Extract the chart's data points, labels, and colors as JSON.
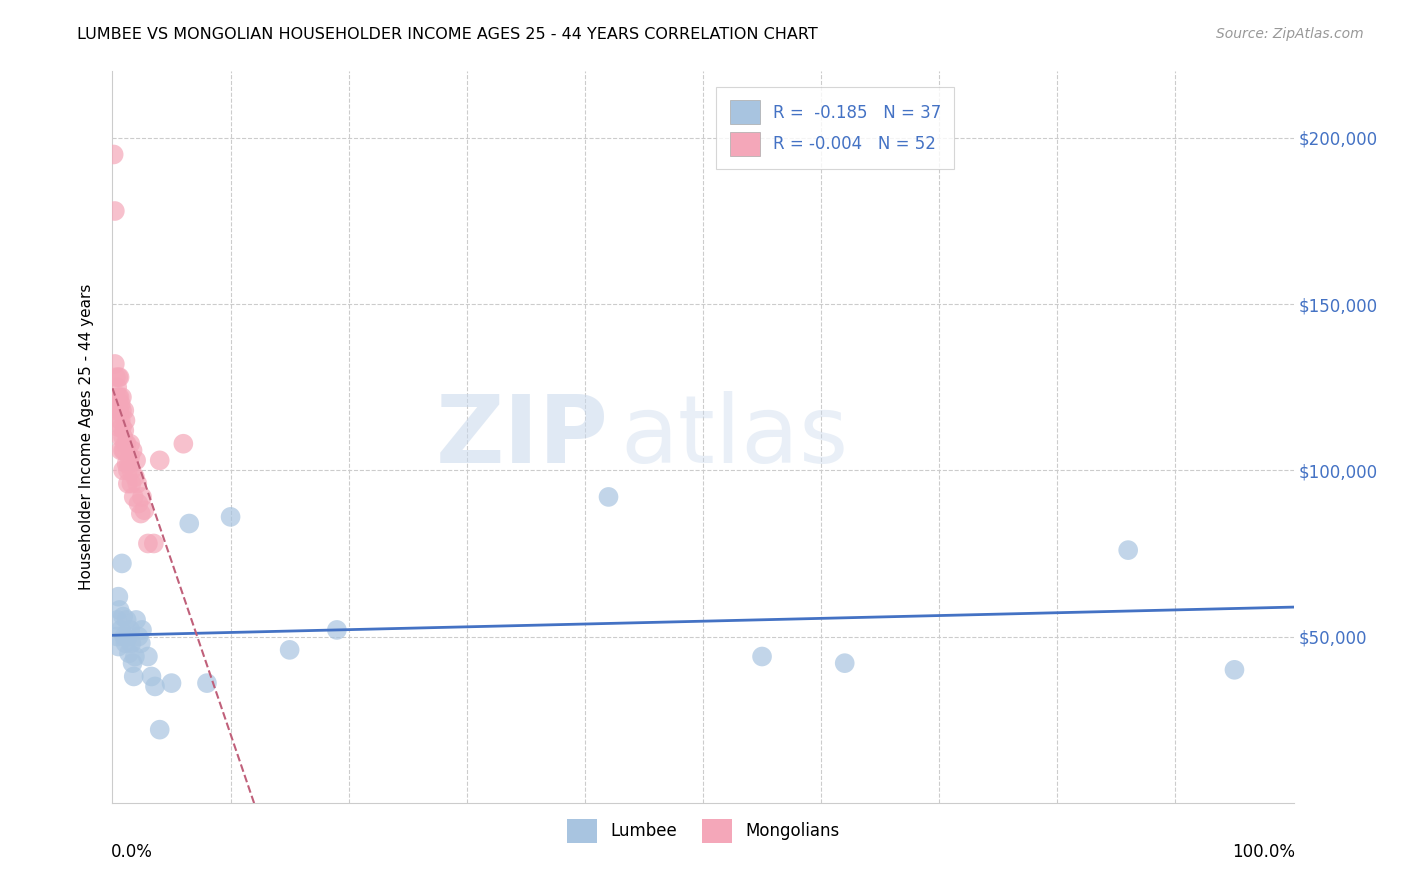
{
  "title": "LUMBEE VS MONGOLIAN HOUSEHOLDER INCOME AGES 25 - 44 YEARS CORRELATION CHART",
  "source": "Source: ZipAtlas.com",
  "ylabel": "Householder Income Ages 25 - 44 years",
  "xlim": [
    0,
    1.0
  ],
  "ylim": [
    0,
    220000
  ],
  "yticks": [
    0,
    50000,
    100000,
    150000,
    200000
  ],
  "ytick_labels": [
    "",
    "$50,000",
    "$100,000",
    "$150,000",
    "$200,000"
  ],
  "lumbee_R": "-0.185",
  "lumbee_N": "37",
  "mongolian_R": "-0.004",
  "mongolian_N": "52",
  "lumbee_color": "#a8c4e0",
  "mongolian_color": "#f4a7b9",
  "lumbee_line_color": "#4472c4",
  "mongolian_line_color": "#c0607a",
  "watermark_zip": "ZIP",
  "watermark_atlas": "atlas",
  "lumbee_x": [
    0.004,
    0.004,
    0.005,
    0.005,
    0.006,
    0.007,
    0.008,
    0.009,
    0.01,
    0.011,
    0.012,
    0.013,
    0.014,
    0.015,
    0.016,
    0.017,
    0.018,
    0.019,
    0.02,
    0.022,
    0.024,
    0.025,
    0.03,
    0.033,
    0.036,
    0.04,
    0.05,
    0.065,
    0.08,
    0.1,
    0.15,
    0.19,
    0.42,
    0.55,
    0.62,
    0.86,
    0.95
  ],
  "lumbee_y": [
    55000,
    50000,
    62000,
    47000,
    58000,
    52000,
    72000,
    56000,
    50000,
    48000,
    55000,
    50000,
    45000,
    52000,
    48000,
    42000,
    38000,
    44000,
    55000,
    50000,
    48000,
    52000,
    44000,
    38000,
    35000,
    22000,
    36000,
    84000,
    36000,
    86000,
    46000,
    52000,
    92000,
    44000,
    42000,
    76000,
    40000
  ],
  "mongolian_x": [
    0.001,
    0.002,
    0.002,
    0.003,
    0.003,
    0.003,
    0.004,
    0.004,
    0.005,
    0.005,
    0.005,
    0.005,
    0.006,
    0.006,
    0.006,
    0.007,
    0.007,
    0.007,
    0.007,
    0.008,
    0.008,
    0.008,
    0.009,
    0.009,
    0.009,
    0.01,
    0.01,
    0.01,
    0.011,
    0.011,
    0.012,
    0.012,
    0.013,
    0.013,
    0.014,
    0.015,
    0.015,
    0.016,
    0.016,
    0.017,
    0.018,
    0.019,
    0.02,
    0.021,
    0.022,
    0.024,
    0.025,
    0.027,
    0.03,
    0.035,
    0.04,
    0.06
  ],
  "mongolian_y": [
    195000,
    178000,
    132000,
    128000,
    122000,
    118000,
    125000,
    120000,
    128000,
    122000,
    118000,
    113000,
    128000,
    122000,
    118000,
    120000,
    115000,
    110000,
    106000,
    122000,
    118000,
    113000,
    110000,
    106000,
    100000,
    118000,
    112000,
    106000,
    115000,
    108000,
    108000,
    102000,
    100000,
    96000,
    102000,
    108000,
    104000,
    100000,
    96000,
    106000,
    92000,
    98000,
    103000,
    96000,
    90000,
    87000,
    92000,
    88000,
    78000,
    78000,
    103000,
    108000
  ]
}
